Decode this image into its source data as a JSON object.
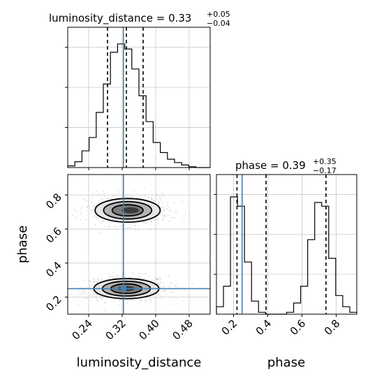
{
  "chart_data": [
    {
      "panel": "luminosity_distance-marginal",
      "type": "histogram",
      "title": {
        "param": "luminosity_distance",
        "value": "0.33",
        "plus": "+0.05",
        "minus": "−0.04"
      },
      "xlim": [
        0.19,
        0.53
      ],
      "ylim": [
        0,
        0.168
      ],
      "bin_edges": [
        0.19,
        0.207,
        0.224,
        0.241,
        0.258,
        0.275,
        0.292,
        0.309,
        0.326,
        0.343,
        0.36,
        0.377,
        0.394,
        0.411,
        0.428,
        0.445,
        0.462,
        0.479,
        0.496,
        0.513,
        0.53
      ],
      "values": [
        0.002,
        0.007,
        0.02,
        0.036,
        0.066,
        0.1,
        0.138,
        0.148,
        0.142,
        0.118,
        0.086,
        0.055,
        0.03,
        0.018,
        0.01,
        0.006,
        0.003,
        0.001,
        0.0,
        0.0
      ],
      "quantile_lines": [
        0.285,
        0.33,
        0.37
      ],
      "truth": 0.323,
      "grid": true
    },
    {
      "panel": "phase-marginal",
      "type": "histogram",
      "title": {
        "param": "phase",
        "value": "0.39",
        "plus": "+0.35",
        "minus": "−0.17"
      },
      "xlim": [
        0.1,
        0.92
      ],
      "ylim": [
        0,
        0.075
      ],
      "bin_edges": [
        0.1,
        0.141,
        0.182,
        0.223,
        0.264,
        0.305,
        0.346,
        0.387,
        0.428,
        0.469,
        0.51,
        0.551,
        0.592,
        0.633,
        0.674,
        0.715,
        0.756,
        0.797,
        0.838,
        0.879,
        0.92
      ],
      "values": [
        0.004,
        0.015,
        0.063,
        0.058,
        0.028,
        0.007,
        0.001,
        0.0,
        0.0,
        0.0,
        0.001,
        0.006,
        0.015,
        0.04,
        0.06,
        0.058,
        0.03,
        0.01,
        0.004,
        0.001
      ],
      "quantile_lines": [
        0.22,
        0.39,
        0.74
      ],
      "truth": 0.25,
      "grid": true
    },
    {
      "panel": "luminosity_distance-vs-phase",
      "type": "scatter",
      "xlabel": "luminosity_distance",
      "ylabel": "phase",
      "xlim": [
        0.19,
        0.53
      ],
      "ylim": [
        0.1,
        0.92
      ],
      "xticks": [
        "0.24",
        "0.32",
        "0.40",
        "0.48"
      ],
      "xtick_values": [
        0.24,
        0.32,
        0.4,
        0.48
      ],
      "yticks": [
        "0.2",
        "0.4",
        "0.6",
        "0.8"
      ],
      "ytick_values": [
        0.2,
        0.4,
        0.6,
        0.8
      ],
      "clusters": [
        {
          "center_x": 0.33,
          "center_y": 0.25,
          "spread_x": 0.037,
          "spread_y": 0.028,
          "weight": 0.55
        },
        {
          "center_x": 0.333,
          "center_y": 0.71,
          "spread_x": 0.037,
          "spread_y": 0.033,
          "weight": 0.45
        }
      ],
      "truth": {
        "x": 0.323,
        "y": 0.25
      },
      "grid": true
    }
  ],
  "phase_xticks": [
    "0.2",
    "0.4",
    "0.6",
    "0.8"
  ],
  "phase_xtick_values": [
    0.2,
    0.4,
    0.6,
    0.8
  ],
  "colors": {
    "truth": "#4682b4",
    "hist": "#000000",
    "grid": "#c8c8c8"
  }
}
